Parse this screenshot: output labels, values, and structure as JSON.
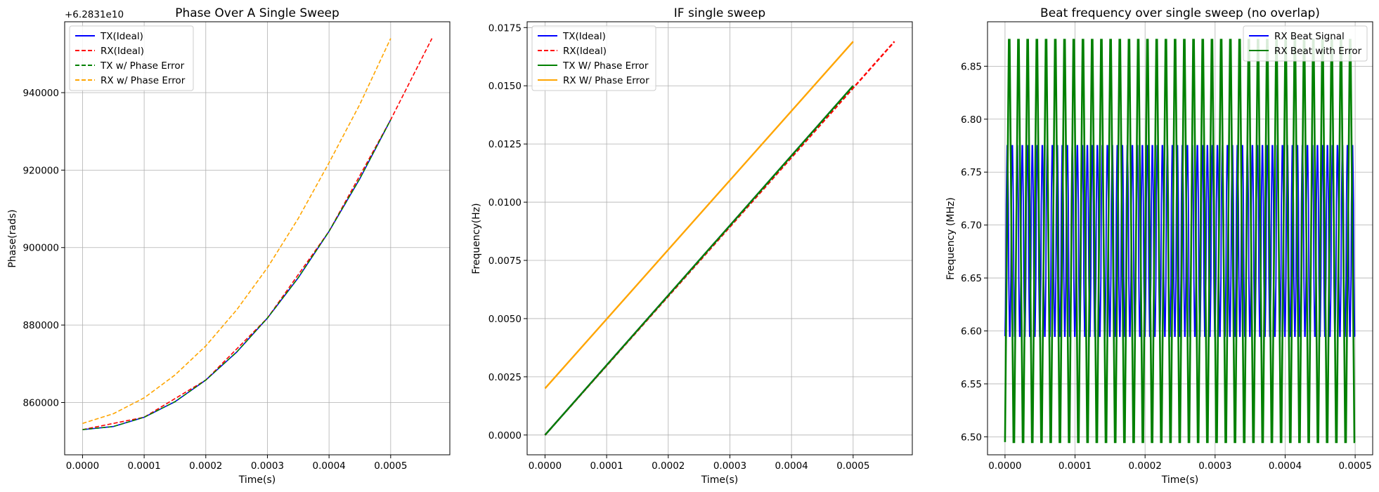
{
  "figure": {
    "background": "#ffffff"
  },
  "chart_data": [
    {
      "type": "line",
      "title": "Phase Over A Single Sweep",
      "xlabel": "Time(s)",
      "ylabel": "Phase(rads)",
      "offset_label": "+6.2831e10",
      "xlim": [
        -2.9e-05,
        0.000596
      ],
      "ylim": [
        846500,
        958300
      ],
      "x_ticks": [
        0.0,
        0.0001,
        0.0002,
        0.0003,
        0.0004,
        0.0005
      ],
      "x_tick_labels": [
        "0.0000",
        "0.0001",
        "0.0002",
        "0.0003",
        "0.0004",
        "0.0005"
      ],
      "y_ticks": [
        860000,
        880000,
        900000,
        920000,
        940000
      ],
      "y_tick_labels": [
        "860000",
        "880000",
        "900000",
        "920000",
        "940000"
      ],
      "grid": true,
      "legend": "top-left",
      "series": [
        {
          "name": "TX(Ideal)",
          "color": "#0000ff",
          "dash": "solid",
          "x": [
            0,
            5e-05,
            0.0001,
            0.00015,
            0.0002,
            0.00025,
            0.0003,
            0.00035,
            0.0004,
            0.00045,
            0.0005
          ],
          "y": [
            853000,
            853800,
            856200,
            860200,
            865800,
            873000,
            881800,
            892200,
            904200,
            917800,
            933000
          ]
        },
        {
          "name": "RX(Ideal)",
          "color": "#ff0000",
          "dash": "dashed",
          "x": [
            0,
            0.0001,
            0.0002,
            0.0003,
            0.0004,
            0.0005,
            0.000567
          ],
          "y": [
            853000,
            856200,
            865800,
            881800,
            904200,
            933000,
            954000
          ]
        },
        {
          "name": "TX w/ Phase Error",
          "color": "#008000",
          "dash": "dashed",
          "x": [
            0,
            5e-05,
            0.0001,
            0.00015,
            0.0002,
            0.00025,
            0.0003,
            0.00035,
            0.0004,
            0.00045,
            0.0005
          ],
          "y": [
            853000,
            853800,
            856200,
            860200,
            865800,
            873000,
            881800,
            892200,
            904200,
            917800,
            933000
          ]
        },
        {
          "name": "RX w/ Phase Error",
          "color": "#ffa500",
          "dash": "dashed",
          "x": [
            0,
            5e-05,
            0.0001,
            0.00015,
            0.0002,
            0.00025,
            0.0003,
            0.00035,
            0.0004,
            0.00045,
            0.0005
          ],
          "y": [
            854600,
            857100,
            861200,
            867100,
            874600,
            883900,
            894800,
            907500,
            921900,
            937000,
            954000
          ]
        }
      ]
    },
    {
      "type": "line",
      "title": "IF single sweep",
      "xlabel": "Time(s)",
      "ylabel": "Frequency(Hz)",
      "xlim": [
        -2.9e-05,
        0.000596
      ],
      "ylim": [
        -0.00085,
        0.01775
      ],
      "x_ticks": [
        0.0,
        0.0001,
        0.0002,
        0.0003,
        0.0004,
        0.0005
      ],
      "x_tick_labels": [
        "0.0000",
        "0.0001",
        "0.0002",
        "0.0003",
        "0.0004",
        "0.0005"
      ],
      "y_ticks": [
        0.0,
        0.0025,
        0.005,
        0.0075,
        0.01,
        0.0125,
        0.015,
        0.0175
      ],
      "y_tick_labels": [
        "0.0000",
        "0.0025",
        "0.0050",
        "0.0075",
        "0.0100",
        "0.0125",
        "0.0150",
        "0.0175"
      ],
      "grid": true,
      "legend": "top-left",
      "series": [
        {
          "name": "TX(Ideal)",
          "color": "#0000ff",
          "dash": "solid",
          "x": [
            0,
            0.0005
          ],
          "y": [
            0.0,
            0.015
          ]
        },
        {
          "name": "RX(Ideal)",
          "color": "#ff0000",
          "dash": "dashed",
          "x": [
            0,
            0.000567
          ],
          "y": [
            0.0,
            0.0169
          ]
        },
        {
          "name": "TX W/ Phase Error",
          "color": "#008000",
          "dash": "solid",
          "x": [
            0,
            0.0005
          ],
          "y": [
            0.0,
            0.015
          ]
        },
        {
          "name": "RX W/ Phase Error",
          "color": "#ffa500",
          "dash": "solid",
          "x": [
            0,
            0.0005
          ],
          "y": [
            0.002,
            0.0169
          ]
        }
      ]
    },
    {
      "type": "line",
      "title": "Beat frequency over single sweep (no overlap)",
      "xlabel": "Time(s)",
      "ylabel": "Frequency (MHz)",
      "xlim": [
        -2.5e-05,
        0.000525
      ],
      "ylim": [
        6.483,
        6.892
      ],
      "x_ticks": [
        0.0,
        0.0001,
        0.0002,
        0.0003,
        0.0004,
        0.0005
      ],
      "x_tick_labels": [
        "0.0000",
        "0.0001",
        "0.0002",
        "0.0003",
        "0.0004",
        "0.0005"
      ],
      "y_ticks": [
        6.5,
        6.55,
        6.6,
        6.65,
        6.7,
        6.75,
        6.8,
        6.85
      ],
      "y_tick_labels": [
        "6.50",
        "6.55",
        "6.60",
        "6.65",
        "6.70",
        "6.75",
        "6.80",
        "6.85"
      ],
      "grid": true,
      "legend": "top-right",
      "series": [
        {
          "name": "RX Beat Signal",
          "color": "#0000ff",
          "dash": "solid",
          "x_range": [
            0,
            0.0005
          ],
          "y_min": 6.595,
          "y_max": 6.775,
          "y_levels": [
            6.595,
            6.62,
            6.65,
            6.685,
            6.72,
            6.75,
            6.775
          ],
          "oscillation_cycles": 70
        },
        {
          "name": "RX Beat with Error",
          "color": "#008000",
          "dash": "solid",
          "x_range": [
            0,
            0.0005
          ],
          "y_min": 6.495,
          "y_max": 6.875,
          "y_levels": [
            6.495,
            6.52,
            6.55,
            6.575,
            6.6,
            6.62,
            6.65,
            6.675,
            6.7,
            6.72,
            6.75,
            6.775,
            6.8,
            6.825,
            6.85,
            6.875
          ],
          "oscillation_cycles": 38
        }
      ]
    }
  ]
}
